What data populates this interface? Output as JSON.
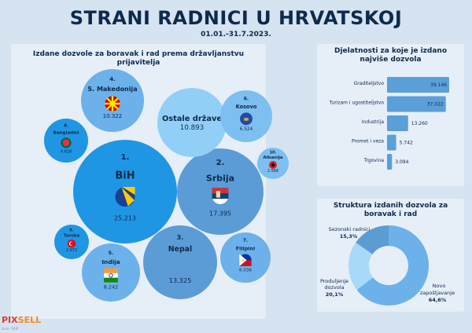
{
  "header": {
    "title": "STRANI RADNICI U HRVATSKOJ",
    "date": "01.01.-31.7.2023."
  },
  "bubbles": {
    "title": "Izdane dozvole za boravak i rad prema državljanstvu prijavitelja",
    "items": [
      {
        "rank": "1.",
        "name": "BiH",
        "value": "25.213",
        "flag": "bih-flag",
        "color": "#1f96e3"
      },
      {
        "rank": "2.",
        "name": "Srbija",
        "value": "17.395",
        "flag": "serbia-flag",
        "color": "#5b9cd6"
      },
      {
        "rank": "3.",
        "name": "Nepal",
        "value": "13.325",
        "flag": "nepal-flag",
        "color": "#5b9cd6"
      },
      {
        "rank": "4.",
        "name": "S. Makedonija",
        "value": "10.322",
        "flag": "macedonia-flag",
        "color": "#6cb1ea"
      },
      {
        "rank": "",
        "name": "Ostale države",
        "value": "10.893",
        "flag": "",
        "color": "#92cff7"
      },
      {
        "rank": "5.",
        "name": "Indija",
        "value": "8.242",
        "flag": "india-flag",
        "color": "#6cb1ea"
      },
      {
        "rank": "6.",
        "name": "Kosovo",
        "value": "6.524",
        "flag": "kosovo-flag",
        "color": "#7dbff0"
      },
      {
        "rank": "7.",
        "name": "Filipini",
        "value": "6.036",
        "flag": "philippines-flag",
        "color": "#6cb1ea"
      },
      {
        "rank": "8.",
        "name": "Bangladeš",
        "value": "4.628",
        "flag": "bangladesh-flag",
        "color": "#1f96e3"
      },
      {
        "rank": "9.",
        "name": "Turska",
        "value": "2.972",
        "flag": "turkey-flag",
        "color": "#1f96e3"
      },
      {
        "rank": "10.",
        "name": "Albanija",
        "value": "2.566",
        "flag": "albania-flag",
        "color": "#7dbff0"
      }
    ]
  },
  "chart_data": [
    {
      "type": "bar",
      "title": "Djelatnosti za koje je izdano najviše dozvola",
      "orientation": "horizontal",
      "categories": [
        "Graditeljstvo",
        "Turizam i ugostiteljstvo",
        "Industrija",
        "Promet i veza",
        "Trgovina"
      ],
      "values": [
        39146,
        37022,
        13260,
        5742,
        3094
      ],
      "labels": [
        "39.146",
        "37.022",
        "13.260",
        "5.742",
        "3.094"
      ],
      "color": "#5b9fd9"
    },
    {
      "type": "pie",
      "title": "Struktura izdanih dozvola za boravak i rad",
      "donut": true,
      "categories": [
        "Novo zapošljavanje",
        "Produljenje dozvola",
        "Sezonski radnici"
      ],
      "values": [
        64.6,
        20.1,
        15.3
      ],
      "labels": [
        "64,6%",
        "20,1%",
        "15,3%"
      ],
      "colors": [
        "#6cb1ea",
        "#a9d9f8",
        "#5d9bd3"
      ]
    }
  ],
  "footer": {
    "logo_a": "PIX",
    "logo_b": "SELL",
    "source": "Izvor: MUP"
  }
}
